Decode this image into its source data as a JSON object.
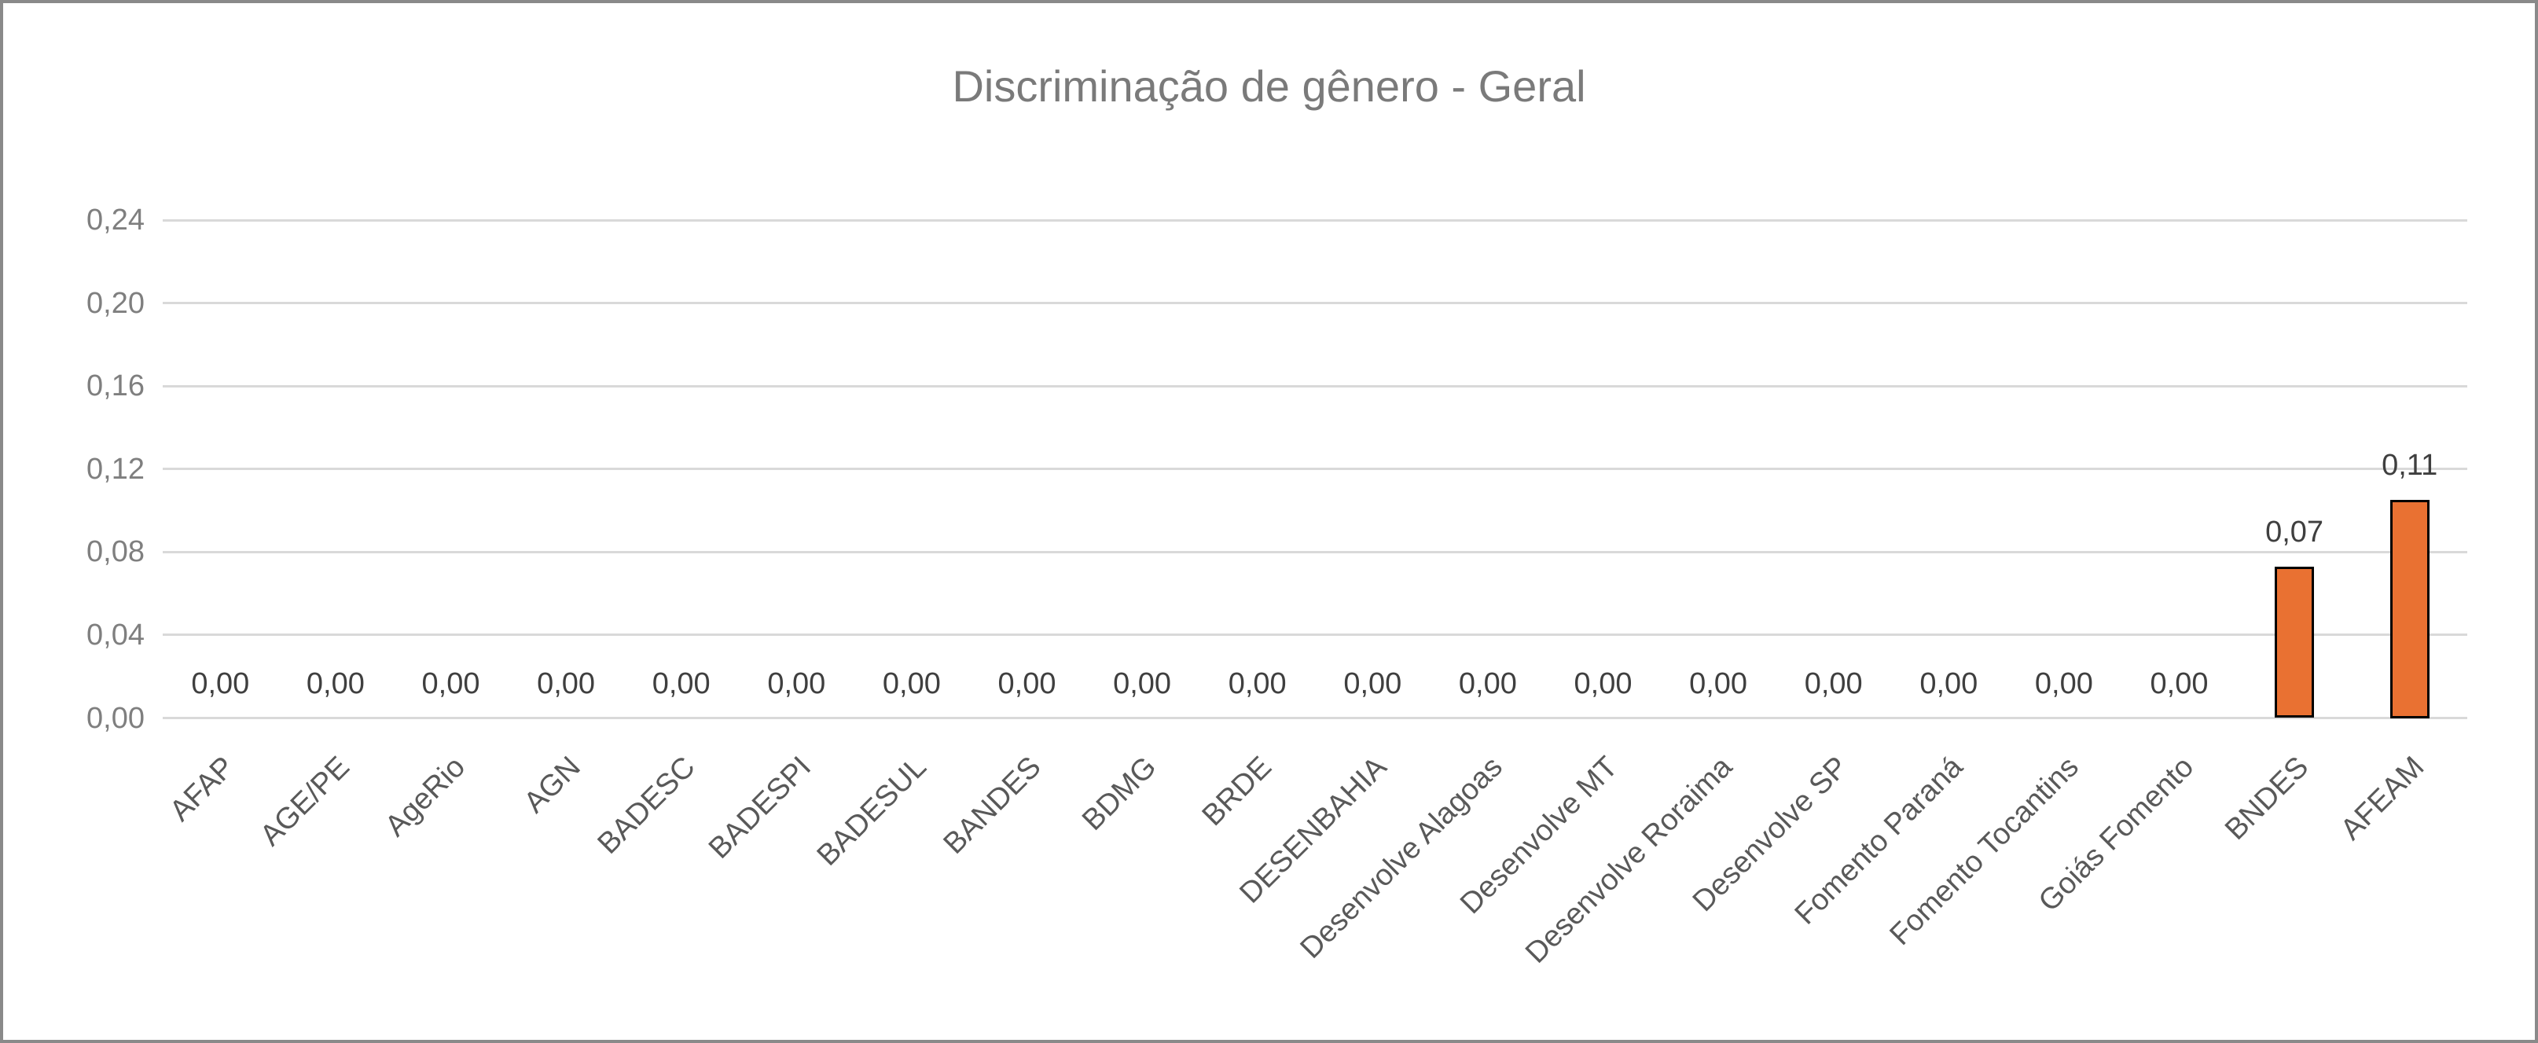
{
  "title": {
    "text": "Discriminação de gênero - Geral"
  },
  "colors": {
    "background": "#FFFFFF",
    "canvas_border": "#8A8A8A",
    "title_text": "#7A7A7A",
    "ytick_text": "#7F7F7F",
    "xtick_text": "#595959",
    "data_label_text": "#3F3F3F",
    "gridline": "#D9D9D9",
    "bar_fill": "#E97132",
    "bar_border": "#000000"
  },
  "chart_data": {
    "type": "bar",
    "title": "Discriminação de gênero - Geral",
    "xlabel": "",
    "ylabel": "",
    "categories": [
      "AFAP",
      "AGE/PE",
      "AgeRio",
      "AGN",
      "BADESC",
      "BADESPI",
      "BADESUL",
      "BANDES",
      "BDMG",
      "BRDE",
      "DESENBAHIA",
      "Desenvolve Alagoas",
      "Desenvolve MT",
      "Desenvolve Roraima",
      "Desenvolve SP",
      "Fomento Paraná",
      "Fomento Tocantins",
      "Goiás Fomento",
      "BNDES",
      "AFEAM"
    ],
    "values": [
      0,
      0,
      0,
      0,
      0,
      0,
      0,
      0,
      0,
      0,
      0,
      0,
      0,
      0,
      0,
      0,
      0,
      0,
      0.073,
      0.105
    ],
    "data_labels": [
      "0,00",
      "0,00",
      "0,00",
      "0,00",
      "0,00",
      "0,00",
      "0,00",
      "0,00",
      "0,00",
      "0,00",
      "0,00",
      "0,00",
      "0,00",
      "0,00",
      "0,00",
      "0,00",
      "0,00",
      "0,00",
      "0,07",
      "0,11"
    ],
    "ylim": [
      0,
      0.24
    ],
    "yticks": [
      {
        "value": 0.0,
        "label": "0,00"
      },
      {
        "value": 0.04,
        "label": "0,04"
      },
      {
        "value": 0.08,
        "label": "0,08"
      },
      {
        "value": 0.12,
        "label": "0,12"
      },
      {
        "value": 0.16,
        "label": "0,16"
      },
      {
        "value": 0.2,
        "label": "0,20"
      },
      {
        "value": 0.24,
        "label": "0,24"
      }
    ],
    "grid": "horizontal",
    "legend": "none",
    "bar_label_position": "outside-end",
    "x_label_rotation_deg": 45,
    "decimal_separator": ","
  }
}
